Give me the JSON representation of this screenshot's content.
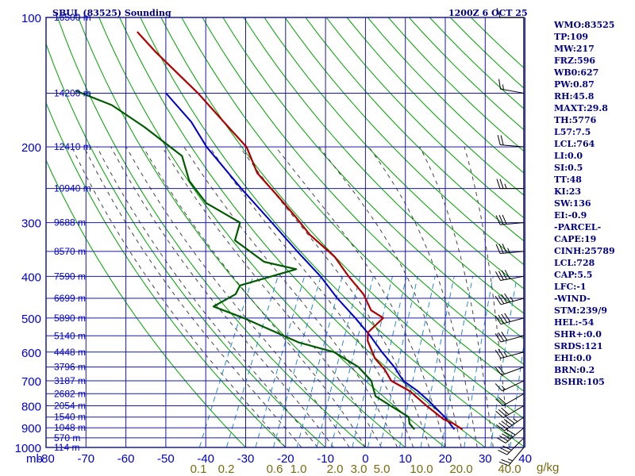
{
  "header": {
    "title": "SBUL (83525) Sounding",
    "valid_time": "1200Z  6 OCT 25"
  },
  "axis": {
    "pressure_unit": "mb",
    "mixing_unit": "g/kg"
  },
  "indices": [
    "WMO:83525",
    "TP:109",
    "MW:217",
    "FRZ:596",
    "WB0:627",
    "PW:0.87",
    "RH:45.8",
    "MAXT:29.8",
    "TH:5776",
    "L57:7.5",
    "LCL:764",
    "LI:0.0",
    "SI:0.5",
    "TT:48",
    "KI:23",
    "SW:136",
    "EI:-0.9",
    "-PARCEL-",
    "CAPE:19",
    "CINH:25789",
    "LCL:728",
    "CAP:5.5",
    "LFC:-1",
    "-WIND-",
    "STM:239/9",
    "HEL:-54",
    "SHR+:0.0",
    "SRDS:121",
    "EHI:0.0",
    "BRN:0.2",
    "BSHR:105"
  ],
  "colors": {
    "grid": "#1a1aa0",
    "temperature": "#b00000",
    "dewpoint": "#005a00",
    "parcel": "#0000c8",
    "dry_adiabat": "#00a000",
    "moist_adiabat": "#444444",
    "mixing_ratio": "#2a8acc",
    "text": "#000080"
  },
  "chart_data": {
    "type": "skew-t log-p sounding",
    "y_scale": "log",
    "pressure_ticks": [
      100,
      200,
      300,
      400,
      500,
      600,
      700,
      800,
      900,
      1000
    ],
    "temperature_ticks": [
      -80,
      -70,
      -60,
      -50,
      -40,
      -30,
      -20,
      -10,
      0,
      10,
      20,
      30,
      40
    ],
    "mixing_ratio_labels": [
      "0.1",
      "0.2",
      "0.6",
      "1.0",
      "2.0",
      "3.0",
      "5.0",
      "10.0",
      "20.0",
      "40.0"
    ],
    "height_labels": [
      {
        "p": 100,
        "label": "16500 m"
      },
      {
        "p": 150,
        "label": "14200 m"
      },
      {
        "p": 200,
        "label": "12410 m"
      },
      {
        "p": 250,
        "label": "10940 m"
      },
      {
        "p": 300,
        "label": "9688 m"
      },
      {
        "p": 350,
        "label": "8570 m"
      },
      {
        "p": 400,
        "label": "7590 m"
      },
      {
        "p": 450,
        "label": "6699 m"
      },
      {
        "p": 500,
        "label": "5890 m"
      },
      {
        "p": 550,
        "label": "5140 m"
      },
      {
        "p": 600,
        "label": "4448 m"
      },
      {
        "p": 650,
        "label": "3796 m"
      },
      {
        "p": 700,
        "label": "3187 m"
      },
      {
        "p": 750,
        "label": "2682 m"
      },
      {
        "p": 800,
        "label": "2054 m"
      },
      {
        "p": 850,
        "label": "1540 m"
      },
      {
        "p": 900,
        "label": "1048 m"
      },
      {
        "p": 950,
        "label": "570 m"
      },
      {
        "p": 1000,
        "label": "114 m"
      }
    ],
    "temperature": [
      [
        908,
        22
      ],
      [
        880,
        19
      ],
      [
        860,
        16
      ],
      [
        800,
        10
      ],
      [
        740,
        4
      ],
      [
        700,
        -2
      ],
      [
        660,
        -5
      ],
      [
        620,
        -9
      ],
      [
        565,
        -13
      ],
      [
        540,
        -14
      ],
      [
        500,
        -12
      ],
      [
        480,
        -16
      ],
      [
        440,
        -20
      ],
      [
        400,
        -26
      ],
      [
        360,
        -32
      ],
      [
        320,
        -41
      ],
      [
        290,
        -47
      ],
      [
        260,
        -54
      ],
      [
        230,
        -62
      ],
      [
        200,
        -68
      ],
      [
        180,
        -75
      ],
      [
        150,
        -87
      ],
      [
        120,
        -103
      ],
      [
        108,
        -110
      ]
    ],
    "dewpoint": [
      [
        908,
        10
      ],
      [
        880,
        8
      ],
      [
        850,
        7
      ],
      [
        800,
        1
      ],
      [
        760,
        -4
      ],
      [
        720,
        -6
      ],
      [
        700,
        -7
      ],
      [
        650,
        -12
      ],
      [
        600,
        -20
      ],
      [
        570,
        -30
      ],
      [
        500,
        -47
      ],
      [
        470,
        -56
      ],
      [
        440,
        -52
      ],
      [
        420,
        -52
      ],
      [
        385,
        -40
      ],
      [
        370,
        -49
      ],
      [
        330,
        -59
      ],
      [
        300,
        -60
      ],
      [
        270,
        -71
      ],
      [
        240,
        -78
      ],
      [
        210,
        -83
      ],
      [
        180,
        -96
      ],
      [
        160,
        -107
      ],
      [
        148,
        -118
      ]
    ],
    "parcel": [
      [
        908,
        20
      ],
      [
        850,
        16
      ],
      [
        780,
        10
      ],
      [
        740,
        6
      ],
      [
        700,
        1
      ],
      [
        650,
        -3
      ],
      [
        600,
        -8
      ],
      [
        550,
        -13
      ],
      [
        500,
        -19
      ],
      [
        450,
        -26
      ],
      [
        400,
        -33
      ],
      [
        350,
        -42
      ],
      [
        300,
        -52
      ],
      [
        250,
        -64
      ],
      [
        200,
        -78
      ],
      [
        175,
        -85
      ],
      [
        150,
        -95
      ]
    ],
    "wind_barbs": [
      [
        1000,
        220,
        25
      ],
      [
        950,
        225,
        30
      ],
      [
        900,
        230,
        50
      ],
      [
        850,
        235,
        55
      ],
      [
        800,
        240,
        30
      ],
      [
        750,
        240,
        20
      ],
      [
        700,
        245,
        15
      ],
      [
        650,
        250,
        20
      ],
      [
        600,
        255,
        25
      ],
      [
        550,
        255,
        30
      ],
      [
        500,
        255,
        40
      ],
      [
        450,
        255,
        45
      ],
      [
        400,
        260,
        40
      ],
      [
        350,
        265,
        35
      ],
      [
        300,
        265,
        30
      ],
      [
        250,
        270,
        25
      ],
      [
        200,
        275,
        20
      ],
      [
        150,
        280,
        15
      ],
      [
        100,
        270,
        10
      ]
    ]
  }
}
